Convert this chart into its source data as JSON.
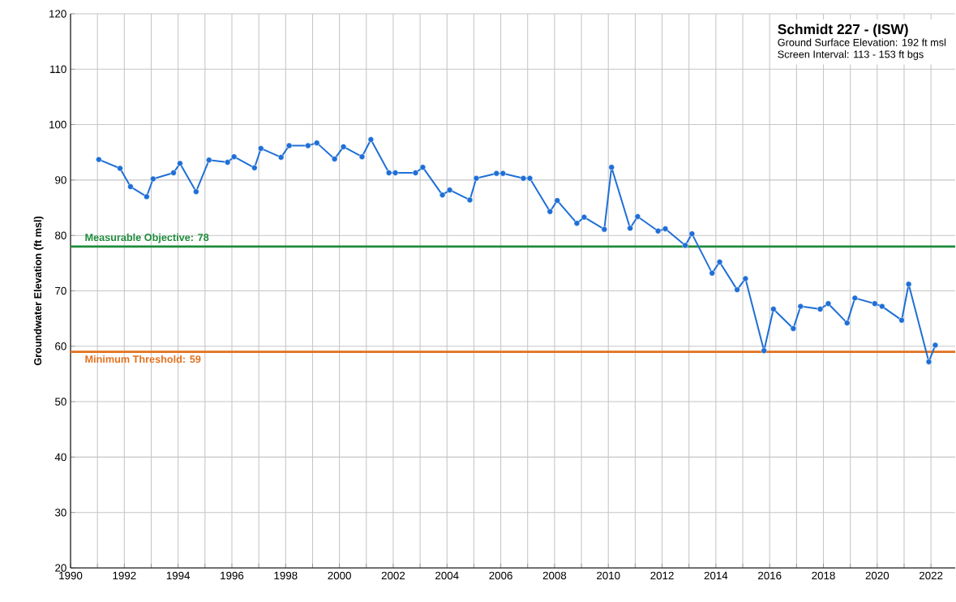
{
  "chart_data": {
    "type": "line",
    "title": "Schmidt 227 - (ISW)",
    "annotations": [
      "Ground Surface Elevation: 192 ft msl",
      "Screen Interval: 113 - 153 ft bgs"
    ],
    "ylabel": "Groundwater Elevation (ft msl)",
    "x": [
      1991.05,
      1991.84,
      1992.23,
      1992.83,
      1993.07,
      1993.83,
      1994.07,
      1994.67,
      1995.15,
      1995.84,
      1996.08,
      1996.84,
      1997.08,
      1997.83,
      1998.13,
      1998.83,
      1999.16,
      1999.82,
      2000.15,
      2000.84,
      2001.17,
      2001.84,
      2002.08,
      2002.83,
      2003.1,
      2003.83,
      2004.1,
      2004.85,
      2005.09,
      2005.84,
      2006.08,
      2006.84,
      2007.08,
      2007.83,
      2008.1,
      2008.83,
      2009.1,
      2009.85,
      2010.12,
      2010.81,
      2011.09,
      2011.85,
      2012.12,
      2012.86,
      2013.11,
      2013.86,
      2014.14,
      2014.79,
      2015.1,
      2015.79,
      2016.14,
      2016.88,
      2017.15,
      2017.88,
      2018.18,
      2018.88,
      2019.17,
      2019.91,
      2020.18,
      2020.91,
      2021.17,
      2021.92,
      2022.16
    ],
    "series": [
      {
        "color": "#1f6fd6",
        "values": [
          93.7,
          92.1,
          88.8,
          87.0,
          90.2,
          91.3,
          93.0,
          87.9,
          93.6,
          93.2,
          94.2,
          92.2,
          95.7,
          94.1,
          96.2,
          96.2,
          96.7,
          93.8,
          96.0,
          94.2,
          97.3,
          91.3,
          91.3,
          91.3,
          92.3,
          87.3,
          88.2,
          86.4,
          90.3,
          91.2,
          91.2,
          90.3,
          90.3,
          84.3,
          86.3,
          82.2,
          83.3,
          81.1,
          92.3,
          81.3,
          83.4,
          80.8,
          81.2,
          78.2,
          80.3,
          73.2,
          75.2,
          70.2,
          72.2,
          59.2,
          66.7,
          63.2,
          67.2,
          66.7,
          67.7,
          64.2,
          68.7,
          67.7,
          67.2,
          64.7,
          71.2,
          57.2,
          60.2
        ]
      }
    ],
    "xlim": [
      1990,
      2022.9
    ],
    "ylim": [
      20,
      120
    ],
    "xticks": [
      1990,
      {
        "value": 1991,
        "label": null
      },
      1992,
      {
        "value": 1993,
        "label": null
      },
      1994,
      {
        "value": 1995,
        "label": null
      },
      1996,
      {
        "value": 1997,
        "label": null
      },
      1998,
      {
        "value": 1999,
        "label": null
      },
      2000,
      {
        "value": 2001,
        "label": null
      },
      2002,
      {
        "value": 2003,
        "label": null
      },
      2004,
      {
        "value": 2005,
        "label": null
      },
      2006,
      {
        "value": 2007,
        "label": null
      },
      2008,
      {
        "value": 2009,
        "label": null
      },
      2010,
      {
        "value": 2011,
        "label": null
      },
      2012,
      {
        "value": 2013,
        "label": null
      },
      2014,
      {
        "value": 2015,
        "label": null
      },
      2016,
      {
        "value": 2017,
        "label": null
      },
      2018,
      {
        "value": 2019,
        "label": null
      },
      2020,
      {
        "value": 2021,
        "label": null
      },
      2022
    ],
    "yticks": [
      20,
      30,
      40,
      50,
      60,
      70,
      80,
      90,
      100,
      110,
      120
    ],
    "ref_lines": [
      {
        "axis": "y",
        "value": 78,
        "label": "Measurable Objective: 78",
        "color": "#1e8c3a"
      },
      {
        "axis": "y",
        "value": 59,
        "label": "Minimum  Threshold: 59",
        "color": "#e2711d"
      }
    ],
    "grid": true,
    "marker": "circle",
    "line_style": "solid"
  }
}
